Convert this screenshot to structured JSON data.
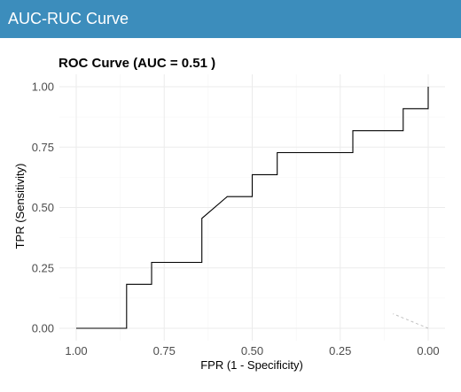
{
  "header": {
    "title": "AUC-RUC Curve",
    "color": "#3c8dbc"
  },
  "chart_data": {
    "type": "line",
    "title": "ROC Curve (AUC = 0.51 )",
    "xlabel": "FPR (1 - Specificity)",
    "ylabel": "TPR (Sensitivity)",
    "xlim": [
      1.0,
      0.0
    ],
    "ylim": [
      0.0,
      1.0
    ],
    "x_reversed": true,
    "grid": true,
    "legend": "none",
    "x_ticks": [
      "1.00",
      "0.75",
      "0.50",
      "0.25",
      "0.00"
    ],
    "y_ticks": [
      "0.00",
      "0.25",
      "0.50",
      "0.75",
      "1.00"
    ],
    "line_color": "#000000",
    "reference_line_color": "#bfbfbf",
    "series": [
      {
        "fpr": [
          1.0,
          0.857,
          0.857,
          0.786,
          0.786,
          0.643,
          0.643,
          0.571,
          0.5,
          0.5,
          0.429,
          0.429,
          0.214,
          0.214,
          0.071,
          0.071,
          0.0,
          0.0
        ],
        "tpr": [
          0.0,
          0.0,
          0.182,
          0.182,
          0.273,
          0.273,
          0.455,
          0.545,
          0.545,
          0.636,
          0.636,
          0.727,
          0.727,
          0.818,
          0.818,
          0.909,
          0.909,
          1.0
        ]
      }
    ],
    "reference_line": {
      "fpr": [
        0.0,
        0.1
      ],
      "tpr": [
        0.0,
        0.06
      ]
    }
  }
}
